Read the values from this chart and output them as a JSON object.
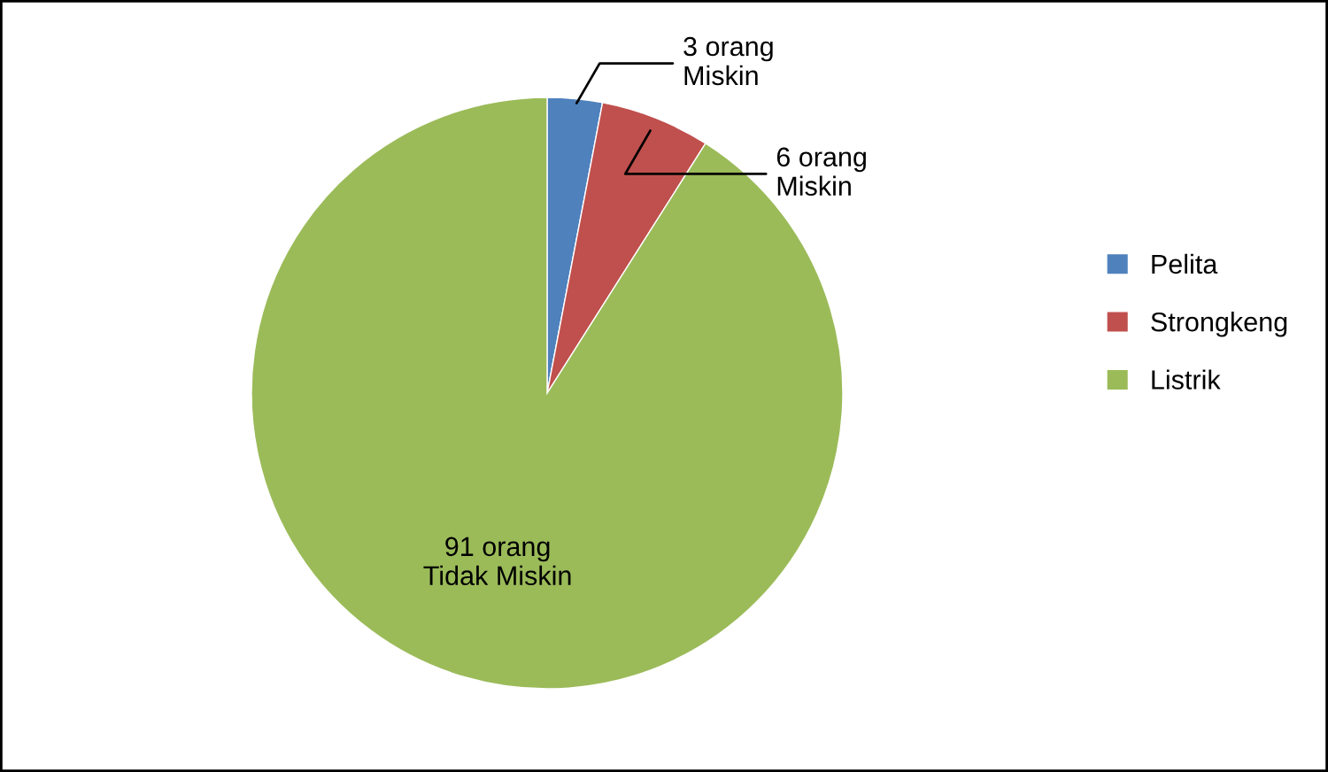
{
  "chart_data": {
    "type": "pie",
    "categories": [
      "Pelita",
      "Strongkeng",
      "Listrik"
    ],
    "values": [
      3,
      6,
      91
    ],
    "colors": [
      "#4f81bd",
      "#c0504d",
      "#9bbb59"
    ],
    "value_labels": [
      "3 orang\nMiskin",
      "6 orang\nMiskin",
      "91 orang\nTidak Miskin"
    ],
    "legend": "right"
  }
}
